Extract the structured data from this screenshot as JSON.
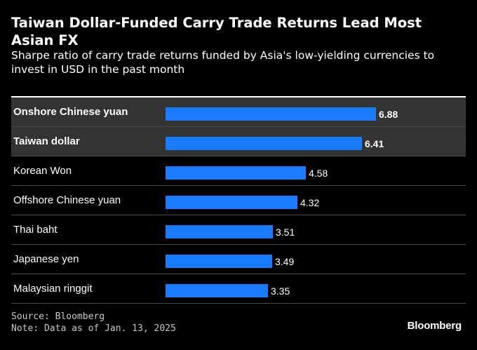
{
  "header": {
    "title": "Taiwan Dollar-Funded Carry Trade Returns Lead Most Asian FX",
    "subtitle": "Sharpe ratio of carry trade returns funded by Asia's low-yielding currencies to invest in USD in the past month"
  },
  "chart_data": {
    "type": "bar",
    "orientation": "horizontal",
    "title": "Taiwan Dollar-Funded Carry Trade Returns Lead Most Asian FX",
    "subtitle": "Sharpe ratio of carry trade returns funded by Asia's low-yielding currencies to invest in USD in the past month",
    "categories": [
      "Onshore Chinese yuan",
      "Taiwan dollar",
      "Korean Won",
      "Offshore Chinese yuan",
      "Thai baht",
      "Japanese yen",
      "Malaysian ringgit"
    ],
    "values": [
      6.88,
      6.41,
      4.58,
      4.32,
      3.51,
      3.49,
      3.35
    ],
    "highlighted": [
      true,
      true,
      false,
      false,
      false,
      false,
      false
    ],
    "xlim": [
      0,
      6.88
    ],
    "xlabel": "",
    "ylabel": "",
    "grid": false,
    "bar_color": "#1a7bff",
    "highlight_background": "#333333"
  },
  "footer": {
    "source": "Source: Bloomberg",
    "note": "Note: Data as of Jan. 13, 2025",
    "brand": "Bloomberg"
  }
}
